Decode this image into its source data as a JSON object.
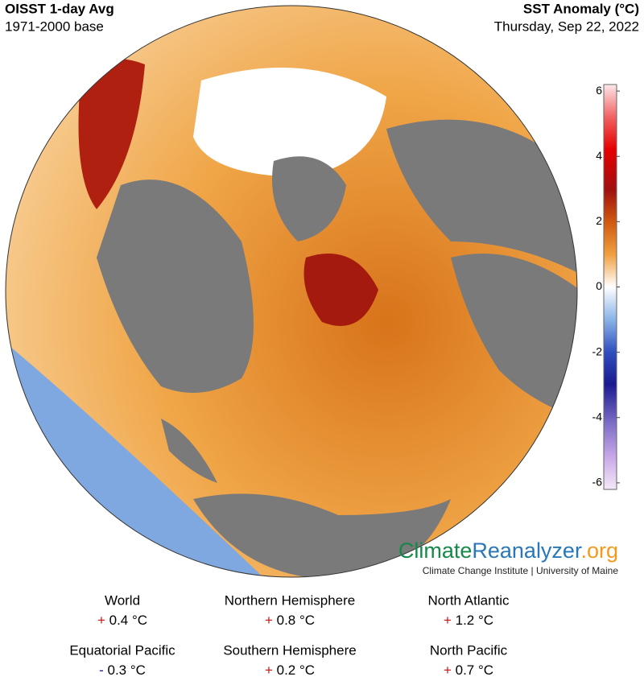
{
  "header": {
    "title": "OISST 1-day Avg",
    "subtitle": "1971-2000 base",
    "right_title": "SST Anomaly (°C)",
    "date": "Thursday, Sep 22, 2022"
  },
  "colorbar": {
    "range": [
      -6.2,
      6.2
    ],
    "ticks": [
      6,
      4,
      2,
      0,
      -2,
      -4,
      -6
    ]
  },
  "logo": {
    "parts": [
      "Climate",
      "Reanalyzer",
      ".org"
    ],
    "credit": "Climate Change Institute | University of Maine"
  },
  "stats": [
    {
      "name": "World",
      "sign": "+",
      "value": "0.4 °C"
    },
    {
      "name": "Northern Hemisphere",
      "sign": "+",
      "value": "0.8 °C"
    },
    {
      "name": "North Atlantic",
      "sign": "+",
      "value": "1.2 °C"
    },
    {
      "name": "Equatorial Pacific",
      "sign": "-",
      "value": "0.3 °C"
    },
    {
      "name": "Southern Hemisphere",
      "sign": "+",
      "value": "0.2 °C"
    },
    {
      "name": "North Pacific",
      "sign": "+",
      "value": "0.7 °C"
    }
  ]
}
